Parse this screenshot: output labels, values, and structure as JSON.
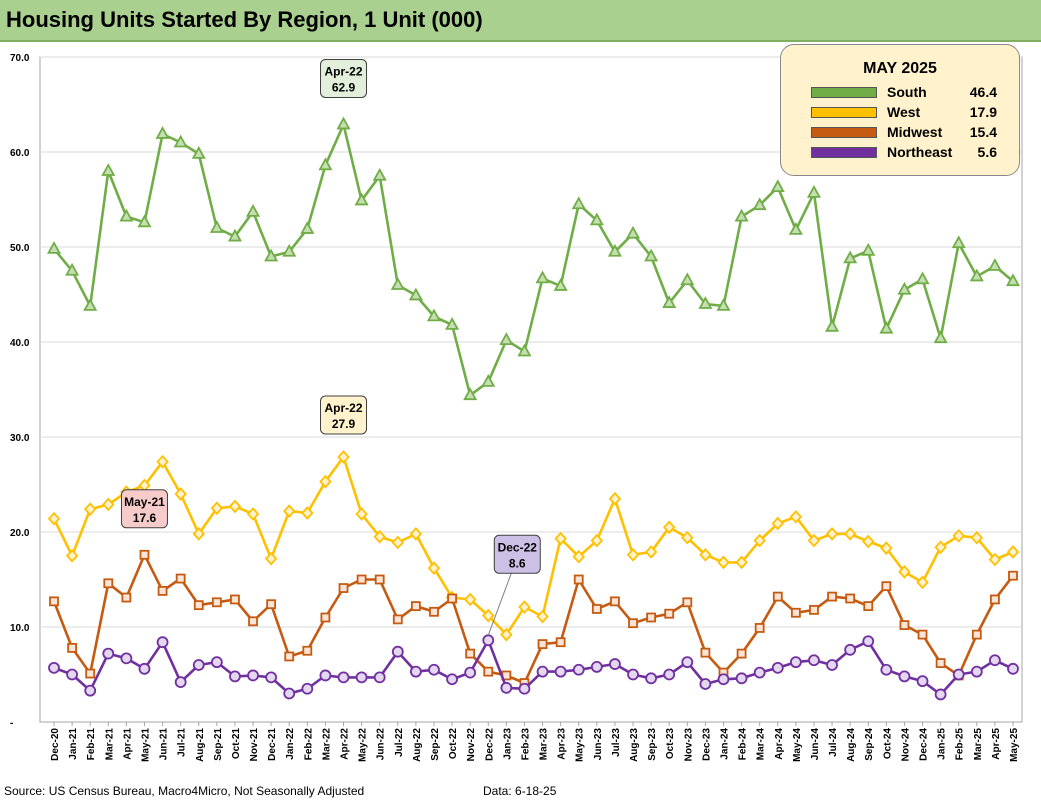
{
  "header": {
    "title": "Housing Units Started By Region, 1 Unit (000)"
  },
  "footer": {
    "source": "Source: US Census Bureau, Macro4Micro, Not Seasonally Adjusted",
    "date": "Data: 6-18-25"
  },
  "legend": {
    "title": "MAY 2025",
    "items": [
      {
        "name": "South",
        "value": "46.4",
        "color": "#70ad47"
      },
      {
        "name": "West",
        "value": "17.9",
        "color": "#ffc000"
      },
      {
        "name": "Midwest",
        "value": "15.4",
        "color": "#c55a11"
      },
      {
        "name": "Northeast",
        "value": "5.6",
        "color": "#7030a0"
      }
    ]
  },
  "chart_data": {
    "type": "line",
    "title": "Housing Units Started By Region, 1 Unit (000)",
    "ylim": [
      0,
      70
    ],
    "yticks": [
      "-",
      "10.0",
      "20.0",
      "30.0",
      "40.0",
      "50.0",
      "60.0",
      "70.0"
    ],
    "categories": [
      "Dec-20",
      "Jan-21",
      "Feb-21",
      "Mar-21",
      "Apr-21",
      "May-21",
      "Jun-21",
      "Jul-21",
      "Aug-21",
      "Sep-21",
      "Oct-21",
      "Nov-21",
      "Dec-21",
      "Jan-22",
      "Feb-22",
      "Mar-22",
      "Apr-22",
      "May-22",
      "Jun-22",
      "Jul-22",
      "Aug-22",
      "Sep-22",
      "Oct-22",
      "Nov-22",
      "Dec-22",
      "Jan-23",
      "Feb-23",
      "Mar-23",
      "Apr-23",
      "May-23",
      "Jun-23",
      "Jul-23",
      "Aug-23",
      "Sep-23",
      "Oct-23",
      "Nov-23",
      "Dec-23",
      "Jan-24",
      "Feb-24",
      "Mar-24",
      "Apr-24",
      "May-24",
      "Jun-24",
      "Jul-24",
      "Aug-24",
      "Sep-24",
      "Oct-24",
      "Nov-24",
      "Dec-24",
      "Jan-25",
      "Feb-25",
      "Mar-25",
      "Apr-25",
      "May-25"
    ],
    "series": [
      {
        "name": "South",
        "color": "#70ad47",
        "marker": "triangle",
        "values": [
          49.8,
          47.5,
          43.8,
          58.0,
          53.2,
          52.6,
          61.9,
          61.0,
          59.8,
          52.0,
          51.1,
          53.7,
          49.0,
          49.5,
          51.9,
          58.6,
          62.9,
          54.9,
          57.5,
          46.0,
          44.9,
          42.7,
          41.8,
          34.4,
          35.8,
          40.2,
          39.0,
          46.7,
          45.9,
          54.5,
          52.8,
          49.5,
          51.4,
          49.0,
          44.1,
          46.5,
          44.0,
          43.8,
          53.2,
          54.4,
          56.3,
          51.8,
          55.7,
          41.6,
          48.8,
          49.6,
          41.4,
          45.5,
          46.6,
          40.4,
          50.4,
          46.9,
          48.0,
          46.4
        ]
      },
      {
        "name": "West",
        "color": "#ffc000",
        "marker": "diamond",
        "values": [
          21.4,
          17.5,
          22.4,
          22.9,
          24.2,
          24.9,
          27.4,
          24.0,
          19.8,
          22.5,
          22.7,
          21.9,
          17.2,
          22.2,
          22.0,
          25.3,
          27.9,
          21.9,
          19.5,
          18.9,
          19.8,
          16.2,
          13.1,
          12.9,
          11.2,
          9.2,
          12.1,
          11.1,
          19.3,
          17.4,
          19.1,
          23.5,
          17.6,
          17.9,
          20.5,
          19.4,
          17.6,
          16.8,
          16.8,
          19.1,
          20.9,
          21.6,
          19.1,
          19.8,
          19.8,
          19.0,
          18.3,
          15.8,
          14.7,
          18.4,
          19.6,
          19.4,
          17.1,
          17.9
        ]
      },
      {
        "name": "Midwest",
        "color": "#c55a11",
        "marker": "square",
        "values": [
          12.7,
          7.8,
          5.1,
          14.6,
          13.1,
          17.6,
          13.8,
          15.1,
          12.3,
          12.6,
          12.9,
          10.6,
          12.4,
          6.9,
          7.5,
          11.0,
          14.1,
          15.0,
          15.0,
          10.8,
          12.2,
          11.6,
          13.0,
          7.2,
          5.3,
          4.9,
          4.1,
          8.2,
          8.4,
          15.0,
          11.9,
          12.7,
          10.4,
          11.0,
          11.4,
          12.6,
          7.3,
          5.2,
          7.2,
          9.9,
          13.2,
          11.5,
          11.8,
          13.2,
          13.0,
          12.2,
          14.3,
          10.2,
          9.2,
          6.2,
          4.9,
          9.2,
          12.9,
          15.4
        ]
      },
      {
        "name": "Northeast",
        "color": "#7030a0",
        "marker": "circle",
        "values": [
          5.7,
          5.0,
          3.3,
          7.2,
          6.7,
          5.6,
          8.4,
          4.2,
          6.0,
          6.3,
          4.8,
          4.9,
          4.7,
          3.0,
          3.5,
          4.9,
          4.7,
          4.7,
          4.7,
          7.4,
          5.3,
          5.5,
          4.5,
          5.2,
          8.6,
          3.6,
          3.5,
          5.3,
          5.3,
          5.5,
          5.8,
          6.1,
          5.0,
          4.6,
          5.0,
          6.3,
          4.0,
          4.5,
          4.6,
          5.2,
          5.7,
          6.3,
          6.5,
          6.0,
          7.6,
          8.5,
          5.5,
          4.8,
          4.3,
          2.9,
          5.0,
          5.3,
          6.5,
          5.6
        ]
      }
    ],
    "annotations": [
      {
        "series": "South",
        "category": "Apr-22",
        "label": "Apr-22",
        "value": "62.9",
        "fill": "#e2efda"
      },
      {
        "series": "West",
        "category": "Apr-22",
        "label": "Apr-22",
        "value": "27.9",
        "fill": "#fff2cc"
      },
      {
        "series": "Midwest",
        "category": "May-21",
        "label": "May-21",
        "value": "17.6",
        "fill": "#f8cbcb"
      },
      {
        "series": "Northeast",
        "category": "Dec-22",
        "label": "Dec-22",
        "value": "8.6",
        "fill": "#ccc0e6"
      }
    ]
  }
}
